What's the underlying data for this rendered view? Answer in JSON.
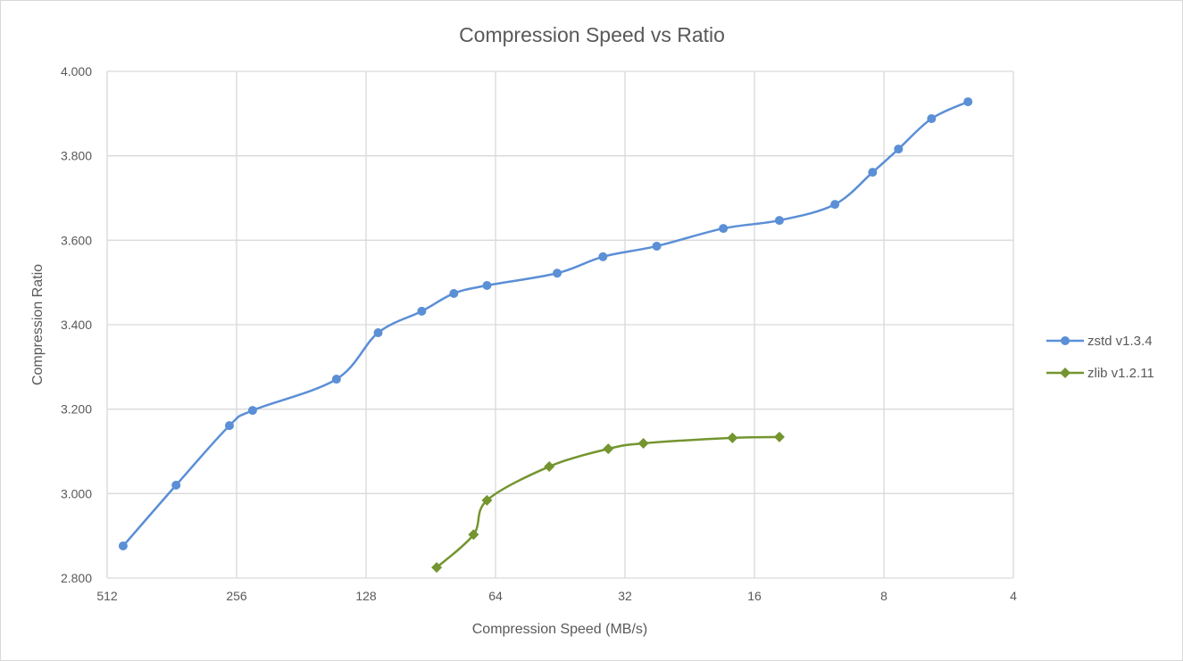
{
  "chart_data": {
    "type": "line",
    "title": "Compression Speed vs Ratio",
    "xlabel": "Compression Speed (MB/s)",
    "ylabel": "Compression Ratio",
    "x_scale": "log2",
    "x_reversed": true,
    "xlim": [
      512,
      4
    ],
    "ylim": [
      2.8,
      4.0
    ],
    "x_ticks": [
      "512",
      "256",
      "128",
      "64",
      "32",
      "16",
      "8",
      "4"
    ],
    "x_tick_values": [
      512,
      256,
      128,
      64,
      32,
      16,
      8,
      4
    ],
    "y_ticks": [
      "2.800",
      "3.000",
      "3.200",
      "3.400",
      "3.600",
      "3.800",
      "4.000"
    ],
    "y_tick_values": [
      2.8,
      3.0,
      3.2,
      3.4,
      3.6,
      3.8,
      4.0
    ],
    "grid": true,
    "smooth": true,
    "legend_position": "right",
    "series": [
      {
        "name": "zstd v1.3.4",
        "color": "#5B8FD6",
        "marker": "circle",
        "x": [
          470,
          354,
          266,
          235,
          150,
          120,
          95,
          80,
          67,
          46,
          36,
          27,
          18.9,
          14,
          10.4,
          8.5,
          7.4,
          6.2,
          5.1
        ],
        "y": [
          2.876,
          3.02,
          3.161,
          3.197,
          3.271,
          3.381,
          3.432,
          3.474,
          3.493,
          3.522,
          3.561,
          3.586,
          3.628,
          3.647,
          3.685,
          3.761,
          3.816,
          3.888,
          3.928
        ]
      },
      {
        "name": "zlib v1.2.11",
        "color": "#74952F",
        "marker": "diamond",
        "x": [
          87.7,
          72,
          67,
          48,
          35,
          29,
          18,
          14
        ],
        "y": [
          2.825,
          2.903,
          2.984,
          3.064,
          3.106,
          3.119,
          3.132,
          3.134
        ]
      }
    ]
  }
}
